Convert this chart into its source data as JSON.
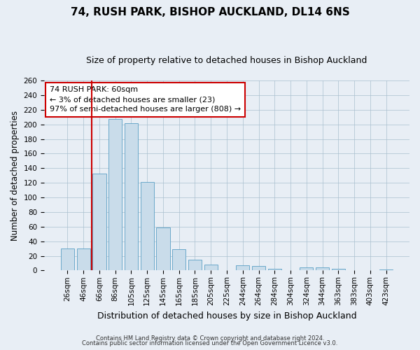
{
  "title": "74, RUSH PARK, BISHOP AUCKLAND, DL14 6NS",
  "subtitle": "Size of property relative to detached houses in Bishop Auckland",
  "xlabel": "Distribution of detached houses by size in Bishop Auckland",
  "ylabel": "Number of detached properties",
  "bar_labels": [
    "26sqm",
    "46sqm",
    "66sqm",
    "86sqm",
    "105sqm",
    "125sqm",
    "145sqm",
    "165sqm",
    "185sqm",
    "205sqm",
    "225sqm",
    "244sqm",
    "264sqm",
    "284sqm",
    "304sqm",
    "324sqm",
    "344sqm",
    "363sqm",
    "383sqm",
    "403sqm",
    "423sqm"
  ],
  "bar_values": [
    30,
    30,
    133,
    207,
    202,
    121,
    59,
    29,
    15,
    8,
    0,
    7,
    6,
    2,
    0,
    4,
    4,
    2,
    0,
    0,
    1
  ],
  "bar_color": "#c9dcea",
  "bar_edge_color": "#5a9fc5",
  "vline_color": "#cc0000",
  "vline_x": 1.5,
  "ylim": [
    0,
    260
  ],
  "yticks": [
    0,
    20,
    40,
    60,
    80,
    100,
    120,
    140,
    160,
    180,
    200,
    220,
    240,
    260
  ],
  "annotation_title": "74 RUSH PARK: 60sqm",
  "annotation_line1": "← 3% of detached houses are smaller (23)",
  "annotation_line2": "97% of semi-detached houses are larger (808) →",
  "annotation_box_color": "#ffffff",
  "annotation_box_edge": "#cc0000",
  "footer1": "Contains HM Land Registry data © Crown copyright and database right 2024.",
  "footer2": "Contains public sector information licensed under the Open Government Licence v3.0.",
  "bg_color": "#e8eef5",
  "plot_bg_color": "#e8eef5",
  "title_fontsize": 11,
  "subtitle_fontsize": 9,
  "xlabel_fontsize": 9,
  "ylabel_fontsize": 8.5,
  "tick_fontsize": 7.5,
  "annotation_fontsize": 8,
  "footer_fontsize": 6
}
